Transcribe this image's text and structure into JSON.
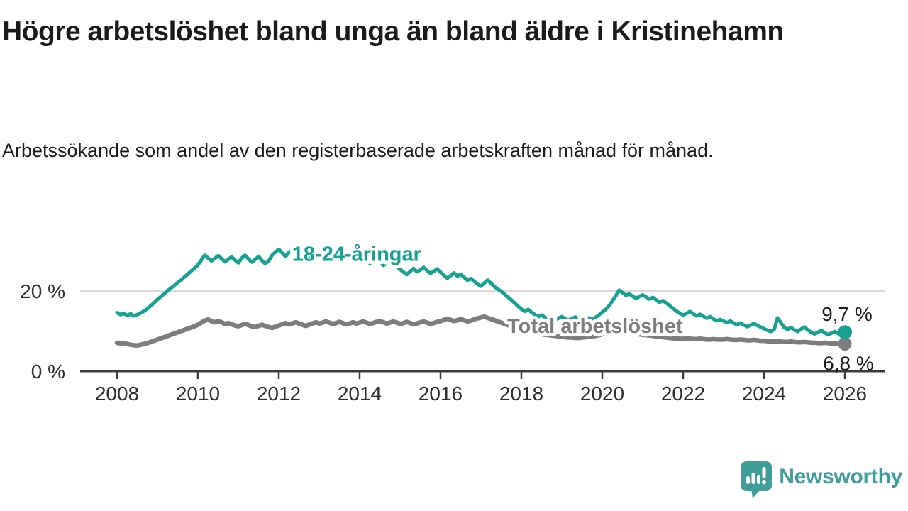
{
  "title": "Högre arbetslöshet bland unga än bland äldre i Kristinehamn",
  "subtitle": "Arbetssökande som andel av den registerbaserade arbetskraften månad för månad.",
  "branding": {
    "logo_text": "Newsworthy",
    "logo_icon": "speech-bubble-with-bar-chart",
    "logo_color": "#3f9e99"
  },
  "colors": {
    "youth_line": "#16a190",
    "total_line": "#7d7d7d",
    "gridline": "#dadada",
    "axis": "#3b3b3b",
    "tick_text": "#2e2e2e",
    "value_text": "#1a1a1a",
    "label_halo": "#ffffff"
  },
  "chart_data": {
    "type": "line",
    "title": "Högre arbetslöshet bland unga än bland äldre i Kristinehamn",
    "subtitle": "Arbetssökande som andel av den registerbaserade arbetskraften månad för månad.",
    "unit": "%",
    "x_start_year": 2008,
    "x_end_year": 2026,
    "points_per_year": 12,
    "x_tick_labels": [
      "2008",
      "2010",
      "2012",
      "2014",
      "2016",
      "2018",
      "2020",
      "2022",
      "2024",
      "2026"
    ],
    "x_tick_years": [
      2008,
      2010,
      2012,
      2014,
      2016,
      2018,
      2020,
      2022,
      2024,
      2026
    ],
    "y_ticks": [
      {
        "value": 0,
        "label": "0 %"
      },
      {
        "value": 20,
        "label": "20 %"
      }
    ],
    "ylim": [
      0,
      33
    ],
    "grid": "y-20-only",
    "legend_position": "inline-labels",
    "series": [
      {
        "name": "18-24-åringar",
        "color": "#16a190",
        "end_value": 9.7,
        "end_label": "9,7 %",
        "label_x_year": 2012.33,
        "label_value": 27.5,
        "values": [
          14.6,
          14.1,
          14.4,
          13.9,
          14.3,
          13.8,
          14.1,
          14.5,
          15.0,
          15.6,
          16.3,
          17.1,
          17.9,
          18.6,
          19.3,
          20.1,
          20.7,
          21.4,
          22.1,
          22.7,
          23.5,
          24.2,
          25.0,
          25.7,
          26.5,
          27.7,
          28.9,
          28.2,
          27.5,
          28.1,
          28.8,
          28.1,
          27.3,
          27.9,
          28.5,
          27.7,
          27.0,
          28.2,
          28.9,
          28.0,
          27.2,
          27.9,
          28.6,
          27.6,
          26.8,
          27.5,
          28.9,
          29.7,
          30.4,
          29.5,
          28.6,
          29.6,
          30.5,
          29.4,
          28.3,
          29.0,
          29.8,
          28.7,
          27.9,
          28.5,
          29.3,
          30.2,
          29.1,
          28.0,
          28.7,
          29.4,
          28.4,
          27.6,
          28.2,
          28.9,
          28.0,
          27.3,
          27.9,
          28.6,
          27.7,
          26.9,
          27.4,
          28.0,
          27.1,
          26.4,
          26.9,
          27.5,
          26.7,
          26.0,
          25.4,
          24.7,
          24.1,
          24.9,
          25.6,
          24.8,
          25.3,
          25.9,
          25.1,
          24.4,
          24.9,
          25.5,
          24.7,
          23.9,
          23.2,
          23.8,
          24.5,
          23.7,
          24.2,
          23.4,
          22.7,
          23.1,
          22.4,
          21.7,
          21.2,
          22.0,
          22.7,
          21.9,
          21.1,
          20.5,
          19.9,
          19.2,
          18.5,
          17.8,
          17.0,
          16.2,
          15.5,
          14.9,
          15.4,
          14.7,
          14.1,
          13.6,
          14.0,
          13.4,
          12.9,
          13.3,
          12.8,
          13.2,
          13.6,
          13.1,
          12.7,
          13.1,
          13.5,
          13.0,
          12.6,
          12.9,
          13.3,
          12.9,
          13.4,
          14.0,
          14.7,
          15.4,
          16.3,
          17.5,
          18.8,
          20.2,
          19.6,
          18.9,
          19.3,
          18.7,
          18.2,
          18.6,
          19.0,
          18.5,
          18.0,
          18.4,
          17.8,
          17.2,
          17.6,
          17.0,
          16.3,
          15.7,
          15.0,
          14.4,
          14.0,
          14.4,
          14.9,
          14.3,
          13.8,
          14.2,
          13.7,
          13.2,
          13.6,
          13.0,
          12.6,
          12.9,
          12.5,
          12.1,
          12.5,
          12.0,
          11.6,
          12.0,
          11.5,
          11.1,
          11.5,
          11.9,
          11.4,
          11.0,
          10.6,
          10.2,
          9.9,
          10.4,
          13.3,
          12.1,
          10.9,
          10.4,
          10.9,
          10.3,
          9.9,
          10.5,
          11.0,
          10.3,
          9.7,
          9.3,
          9.7,
          10.2,
          9.6,
          9.1,
          9.5,
          9.9,
          9.4,
          9.6,
          9.7
        ]
      },
      {
        "name": "Total arbetslöshet",
        "color": "#7d7d7d",
        "end_value": 6.8,
        "end_label": "6,8 %",
        "label_x_year": 2017.65,
        "label_value": 9.6,
        "values": [
          7.1,
          6.9,
          7.0,
          6.8,
          6.6,
          6.5,
          6.4,
          6.6,
          6.8,
          7.0,
          7.3,
          7.6,
          7.9,
          8.2,
          8.5,
          8.8,
          9.1,
          9.4,
          9.7,
          10.0,
          10.3,
          10.6,
          10.9,
          11.2,
          11.6,
          12.1,
          12.6,
          12.9,
          12.5,
          12.2,
          12.5,
          12.2,
          11.8,
          12.0,
          11.7,
          11.4,
          11.2,
          11.5,
          11.8,
          11.5,
          11.2,
          11.0,
          11.3,
          11.6,
          11.3,
          11.0,
          10.8,
          11.1,
          11.4,
          11.7,
          12.0,
          11.7,
          11.9,
          12.2,
          11.9,
          11.6,
          11.3,
          11.6,
          11.9,
          12.2,
          11.9,
          12.1,
          12.4,
          12.1,
          11.8,
          12.0,
          12.3,
          12.0,
          11.7,
          11.9,
          12.2,
          11.9,
          12.1,
          12.4,
          12.1,
          11.8,
          12.0,
          12.3,
          12.5,
          12.2,
          11.9,
          12.1,
          12.4,
          12.1,
          11.8,
          12.0,
          12.3,
          12.0,
          11.7,
          11.9,
          12.2,
          12.4,
          12.1,
          11.8,
          12.0,
          12.3,
          12.5,
          12.8,
          13.1,
          12.8,
          12.5,
          12.7,
          13.0,
          12.7,
          12.4,
          12.6,
          12.9,
          13.2,
          13.4,
          13.6,
          13.3,
          13.0,
          12.7,
          12.4,
          12.1,
          11.8,
          11.5,
          11.2,
          10.9,
          10.6,
          10.4,
          10.2,
          10.0,
          9.8,
          9.6,
          9.4,
          9.2,
          9.1,
          9.0,
          8.9,
          8.8,
          8.7,
          8.6,
          8.5,
          8.4,
          8.4,
          8.3,
          8.3,
          8.4,
          8.5,
          8.6,
          8.7,
          8.8,
          9.0,
          9.2,
          9.5,
          9.8,
          10.1,
          10.3,
          10.1,
          9.9,
          9.7,
          9.5,
          9.4,
          9.3,
          9.2,
          9.1,
          9.0,
          8.9,
          8.8,
          8.7,
          8.6,
          8.5,
          8.4,
          8.3,
          8.2,
          8.2,
          8.1,
          8.1,
          8.2,
          8.1,
          8.0,
          8.0,
          8.1,
          8.0,
          7.9,
          7.9,
          8.0,
          7.9,
          7.9,
          7.9,
          8.0,
          7.9,
          7.8,
          7.8,
          7.9,
          7.8,
          7.7,
          7.7,
          7.8,
          7.7,
          7.6,
          7.6,
          7.5,
          7.4,
          7.4,
          7.5,
          7.4,
          7.3,
          7.3,
          7.4,
          7.3,
          7.2,
          7.2,
          7.3,
          7.2,
          7.1,
          7.1,
          7.0,
          7.0,
          7.1,
          7.0,
          6.9,
          6.9,
          6.8,
          6.8,
          6.8
        ]
      }
    ]
  }
}
